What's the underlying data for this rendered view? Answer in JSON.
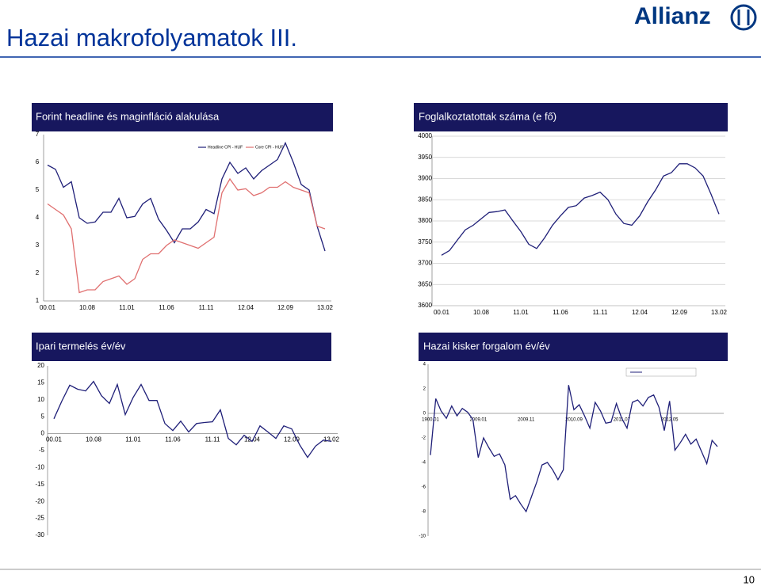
{
  "header": {
    "title": "Hazai makrofolyamatok III.",
    "logo": "Allianz",
    "page_number": "10"
  },
  "chart_data": [
    {
      "type": "line",
      "title": "Forint headline és maginfláció alakulása",
      "categories": [
        "00.01",
        null,
        null,
        null,
        null,
        "10.08",
        null,
        null,
        null,
        null,
        "11.01",
        null,
        null,
        null,
        null,
        "11.06",
        null,
        null,
        null,
        null,
        "11.11",
        null,
        null,
        null,
        null,
        "12.04",
        null,
        null,
        null,
        null,
        "12.09",
        null,
        null,
        null,
        null,
        "13.02"
      ],
      "series": [
        {
          "name": "Headline CPI - HUF",
          "color": "#1f1f78",
          "values": [
            5.9,
            5.75,
            5.1,
            5.3,
            4.0,
            3.8,
            3.85,
            4.2,
            4.2,
            4.7,
            4.0,
            4.05,
            4.5,
            4.7,
            3.95,
            3.55,
            3.1,
            3.6,
            3.6,
            3.85,
            4.3,
            4.15,
            5.4,
            6.0,
            5.6,
            5.8,
            5.4,
            5.7,
            5.9,
            6.1,
            6.7,
            6.0,
            5.2,
            5.0,
            3.7,
            2.8
          ]
        },
        {
          "name": "Core CPI - HUF",
          "color": "#e07070",
          "values": [
            4.5,
            4.3,
            4.1,
            3.6,
            1.3,
            1.4,
            1.4,
            1.7,
            1.8,
            1.9,
            1.6,
            1.8,
            2.5,
            2.7,
            2.7,
            3.0,
            3.2,
            3.1,
            3.0,
            2.9,
            3.1,
            3.3,
            4.9,
            5.4,
            5.0,
            5.05,
            4.8,
            4.9,
            5.1,
            5.1,
            5.3,
            5.1,
            5.0,
            4.9,
            3.7,
            3.6
          ]
        }
      ],
      "ylim": [
        1,
        7
      ],
      "yticks": [
        1,
        2,
        3,
        4,
        5,
        6,
        7
      ],
      "grid": false,
      "legend": "top"
    },
    {
      "type": "line",
      "title": "Foglalkoztatottak száma (e fő)",
      "categories": [
        "00.01",
        null,
        null,
        null,
        null,
        "10.08",
        null,
        null,
        null,
        null,
        "11.01",
        null,
        null,
        null,
        null,
        "11.06",
        null,
        null,
        null,
        null,
        "11.11",
        null,
        null,
        null,
        null,
        "12.04",
        null,
        null,
        null,
        null,
        "12.09",
        null,
        null,
        null,
        null,
        "13.02"
      ],
      "values": [
        3719,
        3730,
        3755,
        3779,
        3790,
        3805,
        3820,
        3822,
        3826,
        3800,
        3775,
        3745,
        3735,
        3760,
        3790,
        3812,
        3832,
        3836,
        3854,
        3860,
        3868,
        3850,
        3816,
        3794,
        3790,
        3812,
        3845,
        3873,
        3906,
        3914,
        3935,
        3935,
        3925,
        3906,
        3863,
        3816
      ],
      "color": "#1f1f78",
      "ylim": [
        3600,
        4000
      ],
      "yticks": [
        3600,
        3650,
        3700,
        3750,
        3800,
        3850,
        3900,
        3950,
        4000
      ],
      "grid": true
    },
    {
      "type": "line",
      "title": "Ipari termelés év/év",
      "categories": [
        "00.01",
        null,
        null,
        null,
        null,
        "10.08",
        null,
        null,
        null,
        null,
        "11.01",
        null,
        null,
        null,
        null,
        "11.06",
        null,
        null,
        null,
        null,
        "11.11",
        null,
        null,
        null,
        null,
        "12.04",
        null,
        null,
        null,
        null,
        "12.09",
        null,
        null,
        null,
        null,
        "13.02"
      ],
      "values": [
        4.4,
        9.6,
        14.3,
        13.1,
        12.6,
        15.4,
        11.2,
        8.9,
        14.5,
        5.6,
        10.7,
        14.5,
        9.8,
        9.8,
        3.0,
        0.9,
        3.7,
        0.5,
        3.0,
        3.3,
        3.5,
        7.0,
        -1.4,
        -3.3,
        -0.5,
        -2.3,
        2.3,
        0.5,
        -1.4,
        2.3,
        1.4,
        -3.3,
        -7.0,
        -3.7,
        -1.9,
        -2.3
      ],
      "color": "#1f1f78",
      "ylim": [
        -30,
        20
      ],
      "yticks": [
        -30,
        -25,
        -20,
        -15,
        -10,
        -5,
        0,
        5,
        10,
        15,
        20
      ],
      "grid": false
    },
    {
      "type": "line",
      "title": "Hazai kisker forgalom év/év",
      "categories": [
        "1900.01",
        null,
        null,
        null,
        null,
        null,
        null,
        null,
        null,
        "2009.01",
        null,
        null,
        null,
        null,
        null,
        null,
        null,
        null,
        "2009.11",
        null,
        null,
        null,
        null,
        null,
        null,
        null,
        null,
        "2010.09",
        null,
        null,
        null,
        null,
        null,
        null,
        null,
        null,
        "2011.07",
        null,
        null,
        null,
        null,
        null,
        null,
        null,
        null,
        "2012.05",
        null,
        null,
        null,
        null,
        null,
        null,
        null,
        null,
        null
      ],
      "values": [
        -3.4,
        1.2,
        0.2,
        -0.4,
        0.6,
        -0.2,
        0.4,
        0.1,
        -0.5,
        -3.6,
        -2.0,
        -2.8,
        -3.5,
        -3.3,
        -4.2,
        -7.0,
        -6.7,
        -7.4,
        -8.0,
        -6.8,
        -5.6,
        -4.2,
        -4.0,
        -4.6,
        -5.4,
        -4.6,
        2.3,
        0.3,
        0.7,
        -0.2,
        -1.2,
        0.9,
        0.2,
        -0.8,
        -0.7,
        0.8,
        -0.4,
        -1.2,
        0.9,
        1.1,
        0.6,
        1.3,
        1.5,
        0.5,
        -1.4,
        1.0,
        -3.0,
        -2.4,
        -1.7,
        -2.5,
        -2.1,
        -3.1,
        -4.1,
        -2.2,
        -2.7
      ],
      "color": "#1f1f78",
      "ylim": [
        -10,
        4
      ],
      "yticks": [
        -10,
        -8,
        -6,
        -4,
        -2,
        0,
        2,
        4
      ],
      "grid": false
    }
  ]
}
